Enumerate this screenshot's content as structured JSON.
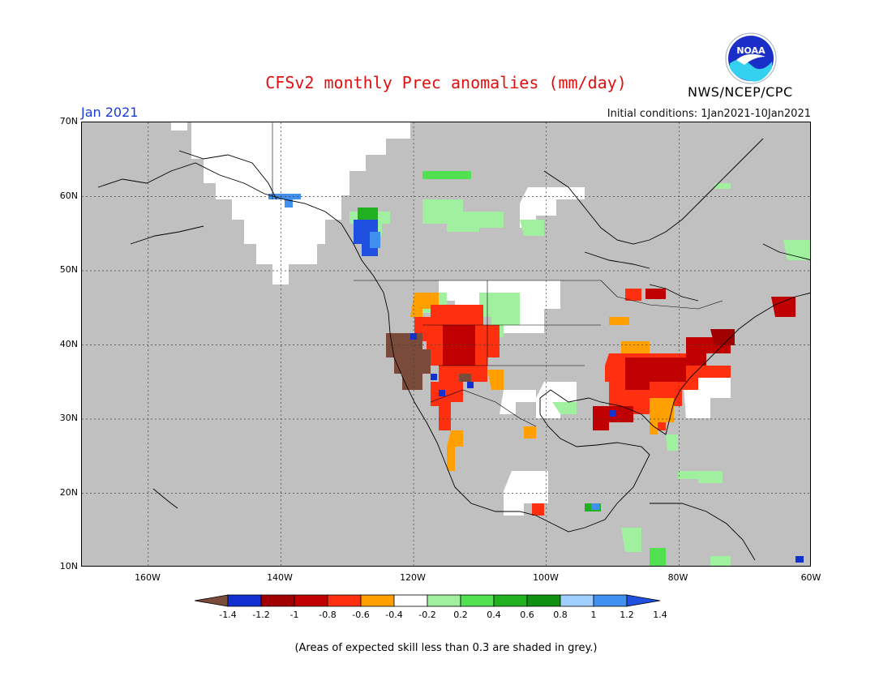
{
  "title": "CFSv2 monthly Prec anomalies (mm/day)",
  "organization": "NWS/NCEP/CPC",
  "logo_text": "NOAA",
  "forecast_month": "Jan 2021",
  "initial_conditions": "Initial conditions: 1Jan2021-10Jan2021",
  "footnote": "(Areas of expected skill less than 0.3 are shaded in grey.)",
  "map": {
    "lat_labels": [
      "70N",
      "60N",
      "50N",
      "40N",
      "30N",
      "20N",
      "10N"
    ],
    "lon_labels": [
      "160W",
      "140W",
      "120W",
      "100W",
      "80W",
      "60W"
    ],
    "extent": {
      "lon_min": -170,
      "lon_max": -60,
      "lat_min": 10,
      "lat_max": 70
    },
    "low_skill_color": "#c0c0c0",
    "regions": [
      {
        "name": "California / Great Basin",
        "anomaly": "< -1.4",
        "color": "#7a4a3a"
      },
      {
        "name": "Southwest US / Arizona",
        "anomaly": "-1 to -0.6",
        "color": "#c00000"
      },
      {
        "name": "Southeast US / Tennessee Valley",
        "anomaly": "-0.8 to -0.4",
        "color": "#d01010"
      },
      {
        "name": "Mid-Atlantic",
        "anomaly": "-1 to -0.8",
        "color": "#a00000"
      },
      {
        "name": "Canadian Prairies",
        "anomaly": "-0.2 to 0.4",
        "color": "#a0f0a0"
      },
      {
        "name": "British Columbia coast",
        "anomaly": "1.2 to 1.4",
        "color": "#3070e0"
      }
    ]
  },
  "colorbar": {
    "colors": [
      "#7a4a3a",
      "#1030d0",
      "#a00000",
      "#c00000",
      "#ff3010",
      "#ffa000",
      "#ffffff",
      "#a0f0a0",
      "#50e050",
      "#20b020",
      "#109010",
      "#a0d0ff",
      "#4090f0",
      "#2050e0"
    ],
    "ticks": [
      "-1.4",
      "-1.2",
      "-1",
      "-0.8",
      "-0.6",
      "-0.4",
      "-0.2",
      "0.2",
      "0.4",
      "0.6",
      "0.8",
      "1",
      "1.2",
      "1.4"
    ]
  }
}
